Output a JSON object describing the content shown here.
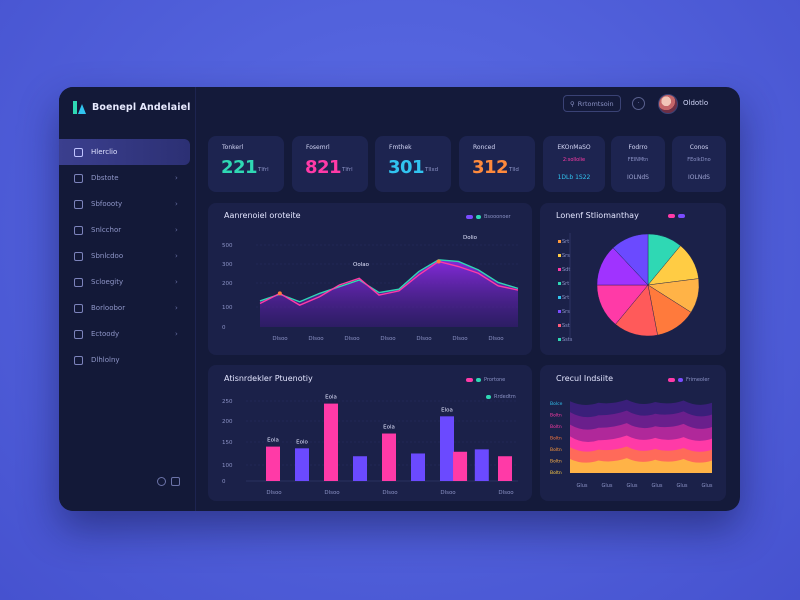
{
  "app": {
    "brand_name": "Boenepl Andelaiel"
  },
  "header": {
    "search_label": "Rrtomtsoin",
    "user_name": "Oldotlo"
  },
  "sidebar": {
    "items": [
      {
        "label": "Hlerclio",
        "icon": "home-icon",
        "active": true
      },
      {
        "label": "Dbstote",
        "icon": "chart-icon"
      },
      {
        "label": "Sbfoooty",
        "icon": "folder-icon"
      },
      {
        "label": "Snlcchor",
        "icon": "users-icon"
      },
      {
        "label": "Sbnlcdoo",
        "icon": "calendar-icon"
      },
      {
        "label": "Scloegity",
        "icon": "message-icon"
      },
      {
        "label": "Borloobor",
        "icon": "settings-icon"
      },
      {
        "label": "Ectoody",
        "icon": "file-icon"
      },
      {
        "label": "Dlhlolny",
        "icon": "layers-icon"
      }
    ]
  },
  "stats": [
    {
      "label": "Tonkerl",
      "value": "221",
      "unit": "Tlfrl",
      "color": "#2fd8b4"
    },
    {
      "label": "Fosemrl",
      "value": "821",
      "unit": "Tlfrl",
      "color": "#ff3aa7"
    },
    {
      "label": "Fmthek",
      "value": "301",
      "unit": "Tllxd",
      "color": "#31c4f0"
    },
    {
      "label": "Ronced",
      "value": "312",
      "unit": "Tlld",
      "color": "#ff8a3c"
    }
  ],
  "mini_cards": [
    {
      "title": "EKOnMaSO",
      "sub": "2:sollolie",
      "value": "1DLb 1S22"
    },
    {
      "title": "Fodrro",
      "sub": "FElNMtn",
      "value": "IOLNdS"
    },
    {
      "title": "Conos",
      "sub": "FEolkDno",
      "value": "IOLNdS"
    }
  ],
  "line_panel": {
    "title": "Aanrenoiel oroteite",
    "legend": "Bsooonoer",
    "callouts": [
      "Oolao",
      "Dolio"
    ]
  },
  "bar_panel": {
    "title": "Atisnrdekler Ptuenotiy",
    "legend": [
      "Prortone",
      "Rrdedtm"
    ]
  },
  "pie_panel": {
    "title": "Lonenf Stliomanthay",
    "legend_rows": [
      "Srt",
      "Srs",
      "Sdt",
      "Srt",
      "Srt",
      "Srs",
      "Sst",
      "Ssts"
    ],
    "legend_colors": [
      "#ff9a3c",
      "#ffcc44",
      "#ff3aa7",
      "#2fd8b4",
      "#31c4f0",
      "#7a4cff",
      "#ff5a7a",
      "#2fd8b4"
    ]
  },
  "area_panel": {
    "title": "Crecul Indsiite",
    "legend": "Frimeoler",
    "y_labels": [
      "Bolce",
      "Boltn",
      "Boltn",
      "Boltn",
      "Boltn",
      "Boltn",
      "Boltn"
    ],
    "x_labels": [
      "Glus",
      "Glus",
      "Glus",
      "Glus",
      "Glus",
      "Glus"
    ]
  },
  "chart_data": [
    {
      "type": "line",
      "title": "Aanrenoiel oroteite",
      "categories": [
        "Dlsoo",
        "Dlsoo",
        "Dlsoo",
        "Dlsoo",
        "Dlsoo",
        "Dlsoo",
        "Dlsoo"
      ],
      "y_ticks": [
        500,
        300,
        200,
        100,
        0
      ],
      "ylim": [
        0,
        500
      ],
      "series": [
        {
          "x": [
            0,
            1,
            2,
            3,
            4,
            5,
            6,
            7,
            8,
            9,
            10,
            11,
            12,
            13
          ],
          "values": [
            140,
            200,
            130,
            180,
            250,
            290,
            190,
            215,
            310,
            390,
            360,
            320,
            245,
            220
          ],
          "color": "#ff3aa7"
        },
        {
          "x": [
            0,
            1,
            2,
            3,
            4,
            5,
            6,
            7,
            8,
            9,
            10,
            11,
            12,
            13
          ],
          "values": [
            155,
            195,
            150,
            200,
            240,
            280,
            205,
            225,
            330,
            400,
            390,
            340,
            265,
            230
          ],
          "color": "#2fd8b4"
        }
      ],
      "grid": true
    },
    {
      "type": "bar",
      "title": "Atisnrdekler Ptuenotiy",
      "categories": [
        "Dlsoo",
        "Dlsoo",
        "Dlsoo",
        "Dlsoo",
        "Dlsoo"
      ],
      "y_ticks": [
        250,
        200,
        150,
        100,
        0
      ],
      "ylim": [
        0,
        250
      ],
      "bars": [
        {
          "slot": 0,
          "value": 100,
          "color": "#ff3aa7",
          "label": "Eola"
        },
        {
          "slot": 1,
          "value": 95,
          "color": "#6b4aff",
          "label": "Eolo"
        },
        {
          "slot": 2,
          "value": 225,
          "color": "#ff3aa7",
          "label": "Eola"
        },
        {
          "slot": 3,
          "value": 72,
          "color": "#6b4aff",
          "label": ""
        },
        {
          "slot": 4,
          "value": 138,
          "color": "#ff3aa7",
          "label": "Eola"
        },
        {
          "slot": 5,
          "value": 80,
          "color": "#6b4aff",
          "label": ""
        },
        {
          "slot": 6,
          "value": 188,
          "color": "#6b4aff",
          "label": "Eloa"
        },
        {
          "slot": 6.45,
          "value": 85,
          "color": "#ff3aa7",
          "label": ""
        },
        {
          "slot": 7.2,
          "value": 92,
          "color": "#6b4aff",
          "label": ""
        },
        {
          "slot": 8,
          "value": 72,
          "color": "#ff3aa7",
          "label": ""
        }
      ],
      "grid": true
    },
    {
      "type": "pie",
      "title": "Lonenf Stliomanthay",
      "slices": [
        {
          "value": 11,
          "color": "#2fd8b4"
        },
        {
          "value": 12,
          "color": "#ffcc44"
        },
        {
          "value": 11,
          "color": "#ffb347"
        },
        {
          "value": 13,
          "color": "#ff7a3c"
        },
        {
          "value": 14,
          "color": "#ff5a5a"
        },
        {
          "value": 14,
          "color": "#ff3aa7"
        },
        {
          "value": 13,
          "color": "#a033ff"
        },
        {
          "value": 12,
          "color": "#6b4aff"
        }
      ]
    },
    {
      "type": "area",
      "title": "Crecul Indsiite",
      "layers": [
        {
          "color": "#3a1f7a",
          "values": [
            92,
            90,
            94,
            91,
            93,
            90
          ]
        },
        {
          "color": "#6a1f8c",
          "values": [
            78,
            74,
            80,
            76,
            79,
            75
          ]
        },
        {
          "color": "#b0289a",
          "values": [
            62,
            58,
            64,
            60,
            63,
            59
          ]
        },
        {
          "color": "#ff3aa7",
          "values": [
            47,
            42,
            48,
            45,
            46,
            44
          ]
        },
        {
          "color": "#ff6a5a",
          "values": [
            33,
            30,
            34,
            31,
            32,
            30
          ]
        },
        {
          "color": "#ffb347",
          "values": [
            18,
            16,
            19,
            17,
            18,
            16
          ]
        }
      ]
    }
  ]
}
